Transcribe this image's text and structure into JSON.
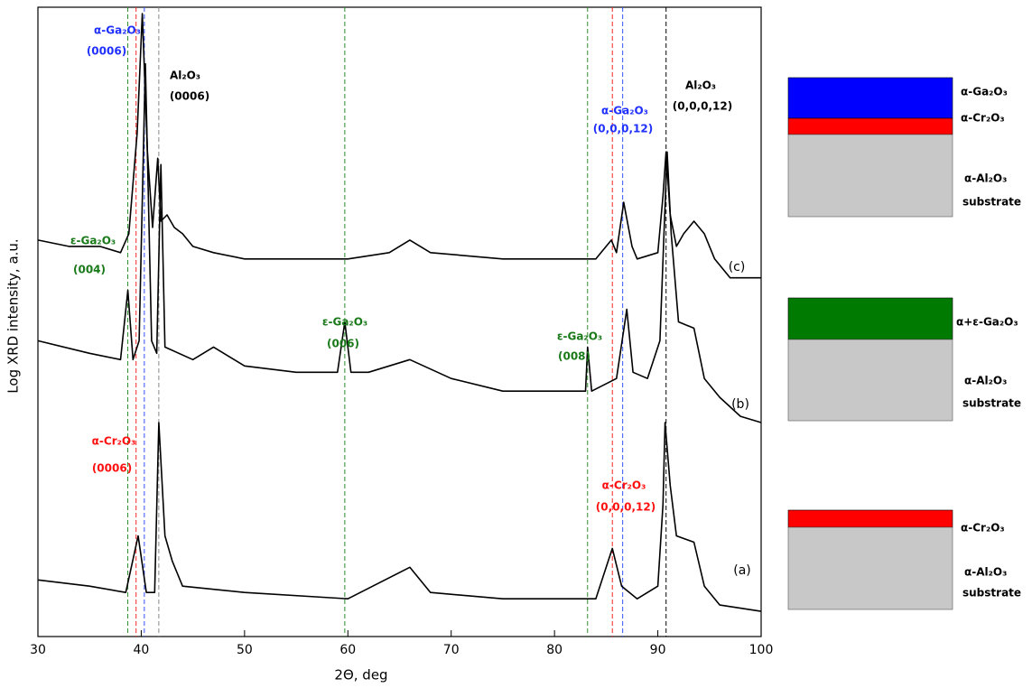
{
  "chart_data": {
    "type": "line",
    "x_label": "2Θ, deg",
    "y_label": "Log XRD intensity, a.u.",
    "xlim": [
      30,
      100
    ],
    "ylim": [
      0,
      100
    ],
    "xticks": [
      30,
      40,
      50,
      60,
      70,
      80,
      90,
      100
    ],
    "series": [
      {
        "name": "(a)",
        "color": "#000000",
        "x": [
          30,
          35,
          38.5,
          39.7,
          40.5,
          41.3,
          41.7,
          42.3,
          43,
          44,
          50,
          60,
          66,
          68,
          75,
          80,
          84,
          85.6,
          86.5,
          88,
          90,
          90.5,
          90.7,
          91.2,
          91.8,
          93.5,
          94.5,
          96,
          100
        ],
        "values": [
          9,
          8,
          7,
          16,
          7,
          7,
          34,
          16,
          12,
          8,
          7,
          6,
          11,
          7,
          6,
          6,
          6,
          14,
          8,
          6,
          8,
          21,
          34,
          24,
          16,
          15,
          8,
          5,
          4
        ]
      },
      {
        "name": "(b)",
        "color": "#000000",
        "x": [
          30,
          35,
          38,
          38.7,
          39.2,
          39.8,
          40.4,
          41,
          41.5,
          41.9,
          42.3,
          45,
          47,
          50,
          55,
          59,
          59.7,
          60.3,
          62,
          66,
          70,
          75,
          80,
          83,
          83.2,
          83.6,
          86,
          87,
          87.6,
          89,
          90.2,
          90.6,
          90.9,
          91.3,
          92,
          93.5,
          94.5,
          96,
          98,
          100
        ],
        "values": [
          47,
          45,
          44,
          55,
          44,
          47,
          91,
          47,
          45,
          75,
          46,
          44,
          46,
          43,
          42,
          42,
          50,
          42,
          42,
          44,
          41,
          39,
          39,
          39,
          46,
          39,
          41,
          52,
          42,
          41,
          47,
          64,
          77,
          64,
          50,
          49,
          41,
          38,
          35,
          34
        ]
      },
      {
        "name": "(c)",
        "color": "#000000",
        "x": [
          30,
          33,
          36,
          38,
          38.8,
          39.6,
          40.1,
          40.6,
          41.1,
          41.6,
          41.9,
          42.5,
          43.2,
          44,
          45,
          47,
          50,
          55,
          60,
          64,
          66,
          68,
          75,
          80,
          84,
          85.5,
          86,
          86.7,
          87.5,
          88,
          90,
          90.5,
          90.8,
          91.2,
          91.8,
          92.5,
          93.5,
          94.5,
          95.5,
          97,
          100
        ],
        "values": [
          63,
          62,
          62,
          61,
          64,
          80,
          99,
          77,
          65,
          76,
          66,
          67,
          65,
          64,
          62,
          61,
          60,
          60,
          60,
          61,
          63,
          61,
          60,
          60,
          60,
          63,
          61,
          69,
          62,
          60,
          61,
          70,
          77,
          67,
          62,
          64,
          66,
          64,
          60,
          57,
          57
        ]
      }
    ],
    "reference_lines": [
      {
        "x": 38.7,
        "color": "#2e8b2e"
      },
      {
        "x": 39.5,
        "color": "#ff2020"
      },
      {
        "x": 40.3,
        "color": "#3050ff"
      },
      {
        "x": 41.7,
        "color": "#888888"
      },
      {
        "x": 59.7,
        "color": "#2e8b2e"
      },
      {
        "x": 83.2,
        "color": "#2e8b2e"
      },
      {
        "x": 85.6,
        "color": "#ff2020"
      },
      {
        "x": 86.6,
        "color": "#3050ff"
      },
      {
        "x": 90.8,
        "color": "#000000"
      }
    ],
    "annotations": [
      {
        "text": "α-Ga₂O₃",
        "color": "#2030ff"
      },
      {
        "text": "(0006)",
        "color": "#2030ff"
      },
      {
        "text": "Al₂O₃",
        "color": "#000000"
      },
      {
        "text": "(0006)",
        "color": "#000000"
      },
      {
        "text": "α-Ga₂O₃",
        "color": "#2030ff"
      },
      {
        "text": "(0,0,0,12)",
        "color": "#2030ff"
      },
      {
        "text": "Al₂O₃",
        "color": "#000000"
      },
      {
        "text": "(0,0,0,12)",
        "color": "#000000"
      },
      {
        "text": "ε-Ga₂O₃",
        "color": "#1a7a1a"
      },
      {
        "text": "(004)",
        "color": "#1a7a1a"
      },
      {
        "text": "ε-Ga₂O₃",
        "color": "#1a7a1a"
      },
      {
        "text": "(006)",
        "color": "#1a7a1a"
      },
      {
        "text": "ε-Ga₂O₃",
        "color": "#1a7a1a"
      },
      {
        "text": "(008)",
        "color": "#1a7a1a"
      },
      {
        "text": "α-Cr₂O₃",
        "color": "#ff1010"
      },
      {
        "text": "(0006)",
        "color": "#ff1010"
      },
      {
        "text": "α-Cr₂O₃",
        "color": "#ff1010"
      },
      {
        "text": "(0,0,0,12)",
        "color": "#ff1010"
      }
    ]
  },
  "layer_diagrams": [
    {
      "labels": [
        "α-Ga₂O₃",
        "α-Cr₂O₃",
        "α-Al₂O₃",
        "substrate"
      ]
    },
    {
      "labels": [
        "α+ε-Ga₂O₃",
        "α-Al₂O₃",
        "substrate"
      ]
    },
    {
      "labels": [
        "α-Cr₂O₃",
        "α-Al₂O₃",
        "substrate"
      ]
    }
  ]
}
